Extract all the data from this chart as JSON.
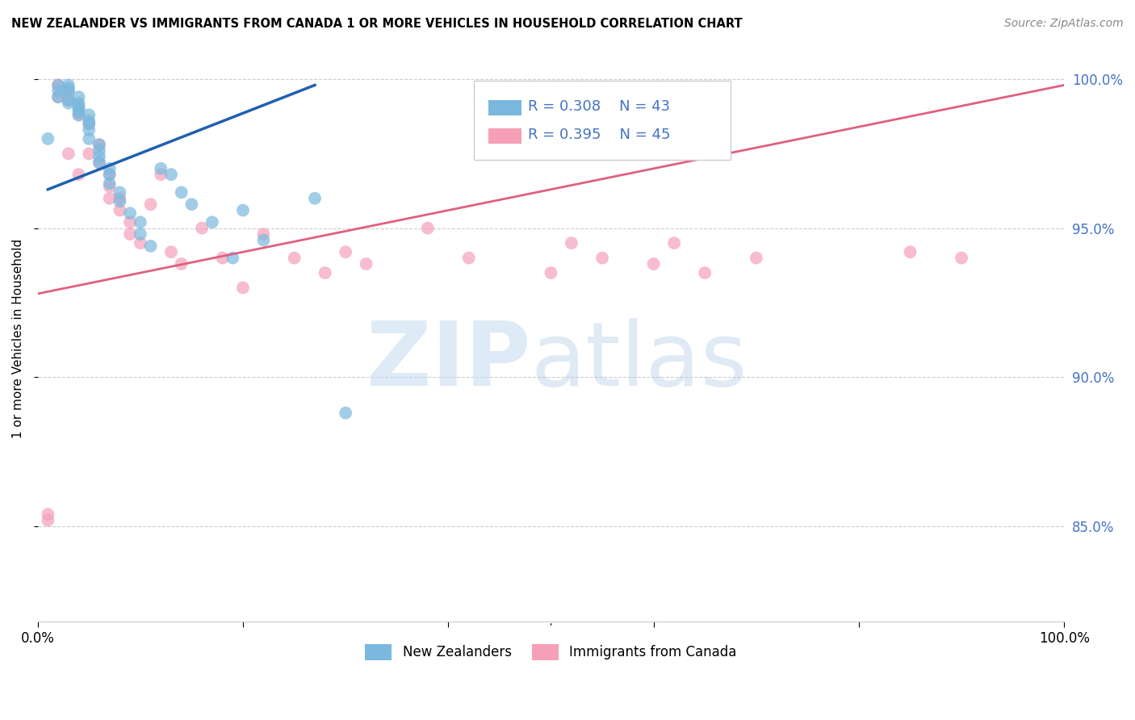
{
  "title": "NEW ZEALANDER VS IMMIGRANTS FROM CANADA 1 OR MORE VEHICLES IN HOUSEHOLD CORRELATION CHART",
  "source": "Source: ZipAtlas.com",
  "ylabel": "1 or more Vehicles in Household",
  "xlim": [
    0.0,
    1.0
  ],
  "ylim": [
    0.818,
    1.008
  ],
  "yticks": [
    0.85,
    0.9,
    0.95,
    1.0
  ],
  "ytick_labels": [
    "85.0%",
    "90.0%",
    "95.0%",
    "100.0%"
  ],
  "xticks": [
    0.0,
    0.2,
    0.4,
    0.6,
    0.8,
    1.0
  ],
  "xtick_labels": [
    "0.0%",
    "",
    "",
    "",
    "",
    "100.0%"
  ],
  "blue_color": "#7ab8de",
  "pink_color": "#f5a0b8",
  "blue_line_color": "#2060b0",
  "pink_line_color": "#e06080",
  "legend_label_blue": "New Zealanders",
  "legend_label_pink": "Immigrants from Canada",
  "blue_scatter_x": [
    0.01,
    0.02,
    0.02,
    0.02,
    0.03,
    0.03,
    0.03,
    0.03,
    0.03,
    0.04,
    0.04,
    0.04,
    0.04,
    0.04,
    0.04,
    0.05,
    0.05,
    0.05,
    0.05,
    0.05,
    0.06,
    0.06,
    0.06,
    0.06,
    0.07,
    0.07,
    0.07,
    0.08,
    0.08,
    0.09,
    0.1,
    0.1,
    0.11,
    0.12,
    0.13,
    0.14,
    0.15,
    0.17,
    0.19,
    0.2,
    0.22,
    0.27,
    0.3
  ],
  "blue_scatter_y": [
    0.98,
    0.998,
    0.996,
    0.994,
    0.998,
    0.997,
    0.996,
    0.993,
    0.992,
    0.994,
    0.992,
    0.991,
    0.99,
    0.989,
    0.988,
    0.988,
    0.986,
    0.985,
    0.983,
    0.98,
    0.978,
    0.976,
    0.974,
    0.972,
    0.97,
    0.968,
    0.965,
    0.962,
    0.959,
    0.955,
    0.952,
    0.948,
    0.944,
    0.97,
    0.968,
    0.962,
    0.958,
    0.952,
    0.94,
    0.956,
    0.946,
    0.96,
    0.888
  ],
  "pink_scatter_x": [
    0.01,
    0.01,
    0.02,
    0.02,
    0.03,
    0.03,
    0.03,
    0.04,
    0.04,
    0.04,
    0.05,
    0.05,
    0.06,
    0.06,
    0.07,
    0.07,
    0.07,
    0.08,
    0.08,
    0.09,
    0.09,
    0.1,
    0.11,
    0.12,
    0.13,
    0.14,
    0.16,
    0.18,
    0.2,
    0.22,
    0.25,
    0.28,
    0.3,
    0.32,
    0.38,
    0.42,
    0.5,
    0.52,
    0.55,
    0.6,
    0.62,
    0.65,
    0.7,
    0.85,
    0.9
  ],
  "pink_scatter_y": [
    0.854,
    0.852,
    0.998,
    0.994,
    0.996,
    0.993,
    0.975,
    0.99,
    0.988,
    0.968,
    0.985,
    0.975,
    0.978,
    0.972,
    0.968,
    0.964,
    0.96,
    0.96,
    0.956,
    0.952,
    0.948,
    0.945,
    0.958,
    0.968,
    0.942,
    0.938,
    0.95,
    0.94,
    0.93,
    0.948,
    0.94,
    0.935,
    0.942,
    0.938,
    0.95,
    0.94,
    0.935,
    0.945,
    0.94,
    0.938,
    0.945,
    0.935,
    0.94,
    0.942,
    0.94
  ],
  "blue_line_x0": 0.01,
  "blue_line_x1": 0.27,
  "blue_line_y0": 0.963,
  "blue_line_y1": 0.998,
  "pink_line_x0": 0.0,
  "pink_line_x1": 1.0,
  "pink_line_y0": 0.928,
  "pink_line_y1": 0.998
}
